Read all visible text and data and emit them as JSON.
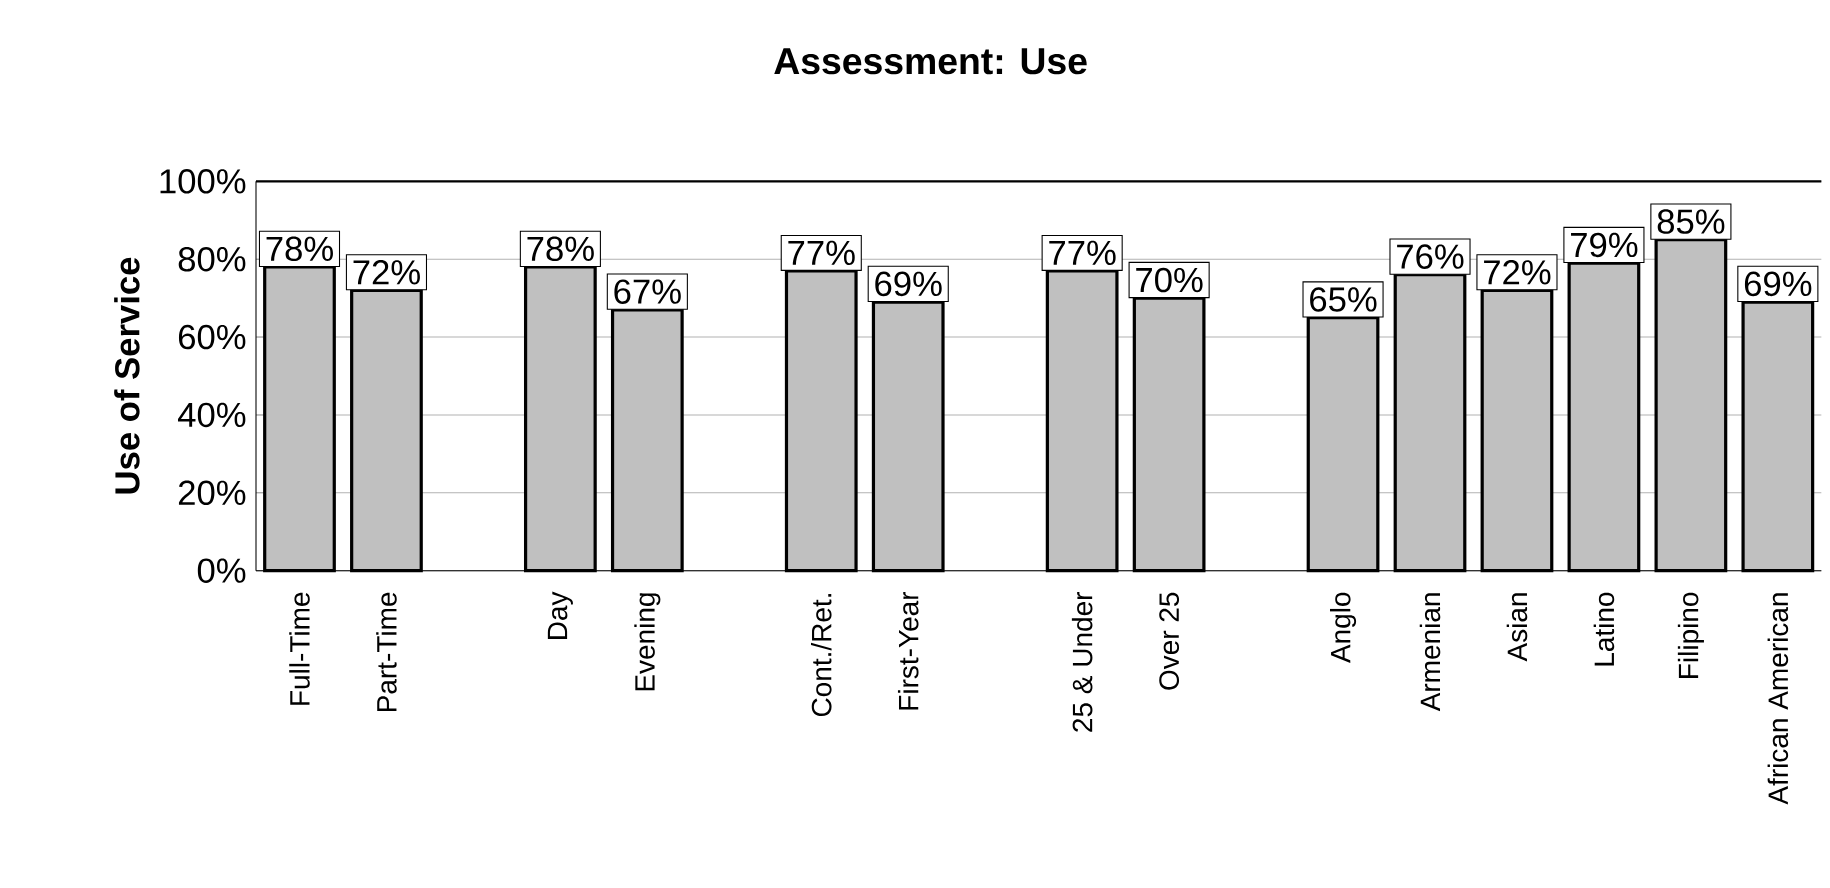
{
  "chart_data": {
    "type": "bar",
    "title": "Assessment: Use",
    "ylabel": "Use of Service",
    "categories": [
      "Full-Time",
      "Part-Time",
      null,
      "Day",
      "Evening",
      null,
      "Cont./Ret.",
      "First-Year",
      null,
      "25 & Under",
      "Over 25",
      null,
      "Anglo",
      "Armenian",
      "Asian",
      "Latino",
      "Filipino",
      "African American"
    ],
    "values": [
      78,
      72,
      null,
      78,
      67,
      null,
      77,
      69,
      null,
      77,
      70,
      null,
      65,
      76,
      72,
      79,
      85,
      69
    ],
    "value_labels": [
      "78%",
      "72%",
      null,
      "78%",
      "67%",
      null,
      "77%",
      "69%",
      null,
      "77%",
      "70%",
      null,
      "65%",
      "76%",
      "72%",
      "79%",
      "85%",
      "69%"
    ],
    "color": "#c0c0c0",
    "ylim": [
      0,
      100
    ],
    "yticks": [
      {
        "value": 0,
        "label": "0%"
      },
      {
        "value": 20,
        "label": "20%"
      },
      {
        "value": 40,
        "label": "40%"
      },
      {
        "value": 60,
        "label": "60%"
      },
      {
        "value": 80,
        "label": "80%"
      },
      {
        "value": 100,
        "label": "100%"
      }
    ],
    "grid": "y"
  }
}
